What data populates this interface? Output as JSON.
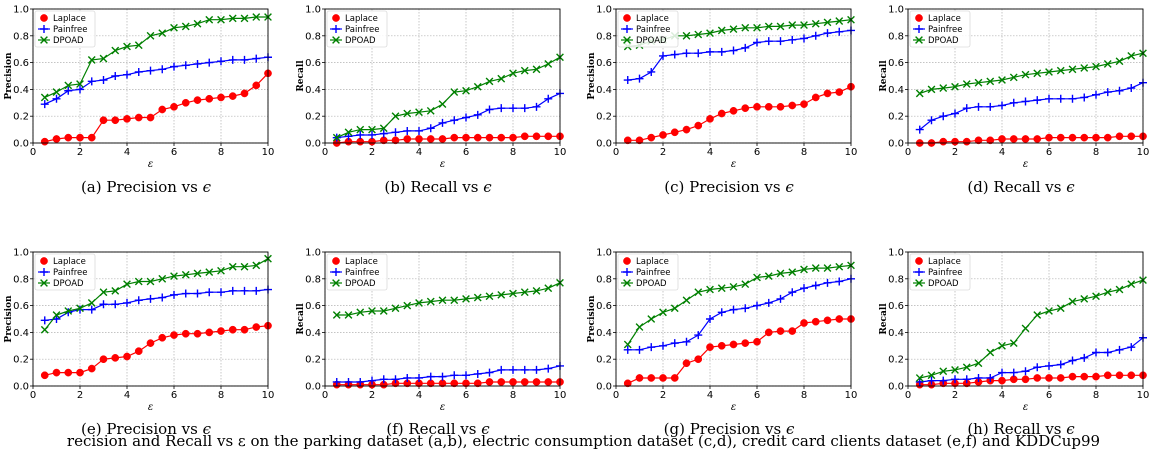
{
  "figure": {
    "caption": "recision and Recall vs ε on the parking dataset (a,b), electric consumption dataset (c,d), credit card clients dataset (e,f) and KDDCup99"
  },
  "legend_labels": [
    "Laplace",
    "Painfree",
    "DPOAD"
  ],
  "colors": {
    "Laplace": "#ff0000",
    "Painfree": "#0000ff",
    "DPOAD": "#008000"
  },
  "chart_data": [
    {
      "type": "line",
      "caption": "(a) Precision vs",
      "symbol": "ϵ",
      "xlabel": "ε",
      "ylabel": "Precision",
      "xlim": [
        0,
        10
      ],
      "ylim": [
        0,
        1
      ],
      "xticks": [
        0,
        2,
        4,
        6,
        8,
        10
      ],
      "yticks": [
        0.0,
        0.2,
        0.4,
        0.6,
        0.8,
        1.0
      ],
      "grid": true,
      "legend_loc": "upper-left",
      "x": [
        0.5,
        1,
        1.5,
        2,
        2.5,
        3,
        3.5,
        4,
        4.5,
        5,
        5.5,
        6,
        6.5,
        7,
        7.5,
        8,
        8.5,
        9,
        9.5,
        10
      ],
      "series": [
        {
          "name": "Laplace",
          "values": [
            0.01,
            0.03,
            0.04,
            0.04,
            0.04,
            0.17,
            0.17,
            0.18,
            0.19,
            0.19,
            0.25,
            0.27,
            0.3,
            0.32,
            0.33,
            0.34,
            0.35,
            0.37,
            0.43,
            0.52
          ]
        },
        {
          "name": "Painfree",
          "values": [
            0.29,
            0.33,
            0.39,
            0.4,
            0.46,
            0.47,
            0.5,
            0.51,
            0.53,
            0.54,
            0.55,
            0.57,
            0.58,
            0.59,
            0.6,
            0.61,
            0.62,
            0.62,
            0.63,
            0.64
          ]
        },
        {
          "name": "DPOAD",
          "values": [
            0.34,
            0.38,
            0.43,
            0.44,
            0.62,
            0.63,
            0.69,
            0.72,
            0.73,
            0.8,
            0.82,
            0.86,
            0.87,
            0.89,
            0.92,
            0.92,
            0.93,
            0.93,
            0.94,
            0.94
          ]
        }
      ]
    },
    {
      "type": "line",
      "caption": "(b) Recall vs",
      "symbol": "ϵ",
      "xlabel": "ε",
      "ylabel": "Recall",
      "xlim": [
        0,
        10
      ],
      "ylim": [
        0,
        1
      ],
      "xticks": [
        0,
        2,
        4,
        6,
        8,
        10
      ],
      "yticks": [
        0.0,
        0.2,
        0.4,
        0.6,
        0.8,
        1.0
      ],
      "grid": true,
      "legend_loc": "upper-left",
      "x": [
        0.5,
        1,
        1.5,
        2,
        2.5,
        3,
        3.5,
        4,
        4.5,
        5,
        5.5,
        6,
        6.5,
        7,
        7.5,
        8,
        8.5,
        9,
        9.5,
        10
      ],
      "series": [
        {
          "name": "Laplace",
          "values": [
            0.0,
            0.01,
            0.01,
            0.01,
            0.02,
            0.02,
            0.03,
            0.03,
            0.03,
            0.03,
            0.04,
            0.04,
            0.04,
            0.04,
            0.04,
            0.04,
            0.05,
            0.05,
            0.05,
            0.05
          ]
        },
        {
          "name": "Painfree",
          "values": [
            0.04,
            0.05,
            0.06,
            0.06,
            0.07,
            0.08,
            0.09,
            0.09,
            0.11,
            0.15,
            0.17,
            0.19,
            0.21,
            0.25,
            0.26,
            0.26,
            0.26,
            0.27,
            0.33,
            0.37
          ]
        },
        {
          "name": "DPOAD",
          "values": [
            0.04,
            0.08,
            0.1,
            0.1,
            0.11,
            0.2,
            0.22,
            0.23,
            0.24,
            0.29,
            0.38,
            0.39,
            0.42,
            0.46,
            0.48,
            0.52,
            0.54,
            0.55,
            0.59,
            0.64
          ]
        }
      ]
    },
    {
      "type": "line",
      "caption": "(c) Precision vs",
      "symbol": "ϵ",
      "xlabel": "ε",
      "ylabel": "Precision",
      "xlim": [
        0,
        10
      ],
      "ylim": [
        0,
        1
      ],
      "xticks": [
        0,
        2,
        4,
        6,
        8,
        10
      ],
      "yticks": [
        0.0,
        0.2,
        0.4,
        0.6,
        0.8,
        1.0
      ],
      "grid": true,
      "legend_loc": "upper-left",
      "x": [
        0.5,
        1,
        1.5,
        2,
        2.5,
        3,
        3.5,
        4,
        4.5,
        5,
        5.5,
        6,
        6.5,
        7,
        7.5,
        8,
        8.5,
        9,
        9.5,
        10
      ],
      "series": [
        {
          "name": "Laplace",
          "values": [
            0.02,
            0.02,
            0.04,
            0.06,
            0.08,
            0.1,
            0.13,
            0.18,
            0.22,
            0.24,
            0.26,
            0.27,
            0.27,
            0.27,
            0.28,
            0.29,
            0.34,
            0.37,
            0.38,
            0.42
          ]
        },
        {
          "name": "Painfree",
          "values": [
            0.47,
            0.48,
            0.53,
            0.65,
            0.66,
            0.67,
            0.67,
            0.68,
            0.68,
            0.69,
            0.71,
            0.75,
            0.76,
            0.76,
            0.77,
            0.78,
            0.8,
            0.82,
            0.83,
            0.84
          ]
        },
        {
          "name": "DPOAD",
          "values": [
            0.72,
            0.73,
            0.76,
            0.77,
            0.8,
            0.8,
            0.81,
            0.82,
            0.84,
            0.85,
            0.86,
            0.86,
            0.87,
            0.87,
            0.88,
            0.88,
            0.89,
            0.9,
            0.91,
            0.92
          ]
        }
      ]
    },
    {
      "type": "line",
      "caption": "(d) Recall vs",
      "symbol": "ϵ",
      "xlabel": "ε",
      "ylabel": "Recall",
      "xlim": [
        0,
        10
      ],
      "ylim": [
        0,
        1
      ],
      "xticks": [
        0,
        2,
        4,
        6,
        8,
        10
      ],
      "yticks": [
        0.0,
        0.2,
        0.4,
        0.6,
        0.8,
        1.0
      ],
      "grid": true,
      "legend_loc": "upper-left",
      "x": [
        0.5,
        1,
        1.5,
        2,
        2.5,
        3,
        3.5,
        4,
        4.5,
        5,
        5.5,
        6,
        6.5,
        7,
        7.5,
        8,
        8.5,
        9,
        9.5,
        10
      ],
      "series": [
        {
          "name": "Laplace",
          "values": [
            0.0,
            0.0,
            0.01,
            0.01,
            0.01,
            0.02,
            0.02,
            0.03,
            0.03,
            0.03,
            0.03,
            0.04,
            0.04,
            0.04,
            0.04,
            0.04,
            0.04,
            0.05,
            0.05,
            0.05
          ]
        },
        {
          "name": "Painfree",
          "values": [
            0.1,
            0.17,
            0.2,
            0.22,
            0.26,
            0.27,
            0.27,
            0.28,
            0.3,
            0.31,
            0.32,
            0.33,
            0.33,
            0.33,
            0.34,
            0.36,
            0.38,
            0.39,
            0.41,
            0.45
          ]
        },
        {
          "name": "DPOAD",
          "values": [
            0.37,
            0.4,
            0.41,
            0.42,
            0.44,
            0.45,
            0.46,
            0.47,
            0.49,
            0.51,
            0.52,
            0.53,
            0.54,
            0.55,
            0.56,
            0.57,
            0.59,
            0.61,
            0.65,
            0.67
          ]
        }
      ]
    },
    {
      "type": "line",
      "caption": "(e) Precision vs",
      "symbol": "ϵ",
      "xlabel": "ε",
      "ylabel": "Precision",
      "xlim": [
        0,
        10
      ],
      "ylim": [
        0,
        1
      ],
      "xticks": [
        0,
        2,
        4,
        6,
        8,
        10
      ],
      "yticks": [
        0.0,
        0.2,
        0.4,
        0.6,
        0.8,
        1.0
      ],
      "grid": true,
      "legend_loc": "upper-left",
      "x": [
        0.5,
        1,
        1.5,
        2,
        2.5,
        3,
        3.5,
        4,
        4.5,
        5,
        5.5,
        6,
        6.5,
        7,
        7.5,
        8,
        8.5,
        9,
        9.5,
        10
      ],
      "series": [
        {
          "name": "Laplace",
          "values": [
            0.08,
            0.1,
            0.1,
            0.1,
            0.13,
            0.2,
            0.21,
            0.22,
            0.26,
            0.32,
            0.36,
            0.38,
            0.39,
            0.39,
            0.4,
            0.41,
            0.42,
            0.42,
            0.44,
            0.45
          ]
        },
        {
          "name": "Painfree",
          "values": [
            0.49,
            0.5,
            0.55,
            0.57,
            0.57,
            0.61,
            0.61,
            0.62,
            0.64,
            0.65,
            0.66,
            0.68,
            0.69,
            0.69,
            0.7,
            0.7,
            0.71,
            0.71,
            0.71,
            0.72
          ]
        },
        {
          "name": "DPOAD",
          "values": [
            0.42,
            0.53,
            0.56,
            0.58,
            0.62,
            0.7,
            0.71,
            0.76,
            0.78,
            0.78,
            0.8,
            0.82,
            0.83,
            0.84,
            0.85,
            0.86,
            0.89,
            0.89,
            0.9,
            0.95
          ]
        }
      ]
    },
    {
      "type": "line",
      "caption": "(f) Recall vs",
      "symbol": "ϵ",
      "xlabel": "ε",
      "ylabel": "Recall",
      "xlim": [
        0,
        10
      ],
      "ylim": [
        0,
        1
      ],
      "xticks": [
        0,
        2,
        4,
        6,
        8,
        10
      ],
      "yticks": [
        0.0,
        0.2,
        0.4,
        0.6,
        0.8,
        1.0
      ],
      "grid": true,
      "legend_loc": "upper-left",
      "x": [
        0.5,
        1,
        1.5,
        2,
        2.5,
        3,
        3.5,
        4,
        4.5,
        5,
        5.5,
        6,
        6.5,
        7,
        7.5,
        8,
        8.5,
        9,
        9.5,
        10
      ],
      "series": [
        {
          "name": "Laplace",
          "values": [
            0.01,
            0.01,
            0.01,
            0.01,
            0.01,
            0.02,
            0.02,
            0.02,
            0.02,
            0.02,
            0.02,
            0.02,
            0.02,
            0.03,
            0.03,
            0.03,
            0.03,
            0.03,
            0.03,
            0.03
          ]
        },
        {
          "name": "Painfree",
          "values": [
            0.03,
            0.03,
            0.03,
            0.04,
            0.05,
            0.05,
            0.06,
            0.06,
            0.07,
            0.07,
            0.08,
            0.08,
            0.09,
            0.1,
            0.12,
            0.12,
            0.12,
            0.12,
            0.13,
            0.15
          ]
        },
        {
          "name": "DPOAD",
          "values": [
            0.53,
            0.53,
            0.55,
            0.56,
            0.56,
            0.58,
            0.6,
            0.62,
            0.63,
            0.64,
            0.64,
            0.65,
            0.66,
            0.67,
            0.68,
            0.69,
            0.7,
            0.71,
            0.73,
            0.77
          ]
        }
      ]
    },
    {
      "type": "line",
      "caption": "(g) Precision vs",
      "symbol": "ϵ",
      "xlabel": "ε",
      "ylabel": "Precision",
      "xlim": [
        0,
        10
      ],
      "ylim": [
        0,
        1
      ],
      "xticks": [
        0,
        2,
        4,
        6,
        8,
        10
      ],
      "yticks": [
        0.0,
        0.2,
        0.4,
        0.6,
        0.8,
        1.0
      ],
      "grid": true,
      "legend_loc": "upper-left",
      "x": [
        0.5,
        1,
        1.5,
        2,
        2.5,
        3,
        3.5,
        4,
        4.5,
        5,
        5.5,
        6,
        6.5,
        7,
        7.5,
        8,
        8.5,
        9,
        9.5,
        10
      ],
      "series": [
        {
          "name": "Laplace",
          "values": [
            0.02,
            0.06,
            0.06,
            0.06,
            0.06,
            0.17,
            0.2,
            0.29,
            0.3,
            0.31,
            0.32,
            0.33,
            0.4,
            0.41,
            0.41,
            0.47,
            0.48,
            0.49,
            0.5,
            0.5
          ]
        },
        {
          "name": "Painfree",
          "values": [
            0.27,
            0.27,
            0.29,
            0.3,
            0.32,
            0.33,
            0.38,
            0.5,
            0.55,
            0.57,
            0.58,
            0.6,
            0.62,
            0.65,
            0.7,
            0.73,
            0.75,
            0.77,
            0.78,
            0.8
          ]
        },
        {
          "name": "DPOAD",
          "values": [
            0.31,
            0.44,
            0.5,
            0.55,
            0.58,
            0.64,
            0.7,
            0.72,
            0.73,
            0.74,
            0.76,
            0.81,
            0.82,
            0.84,
            0.85,
            0.87,
            0.88,
            0.88,
            0.89,
            0.9
          ]
        }
      ]
    },
    {
      "type": "line",
      "caption": "(h) Recall vs",
      "symbol": "ϵ",
      "xlabel": "ε",
      "ylabel": "Recall",
      "xlim": [
        0,
        10
      ],
      "ylim": [
        0,
        1
      ],
      "xticks": [
        0,
        2,
        4,
        6,
        8,
        10
      ],
      "yticks": [
        0.0,
        0.2,
        0.4,
        0.6,
        0.8,
        1.0
      ],
      "grid": true,
      "legend_loc": "upper-left",
      "x": [
        0.5,
        1,
        1.5,
        2,
        2.5,
        3,
        3.5,
        4,
        4.5,
        5,
        5.5,
        6,
        6.5,
        7,
        7.5,
        8,
        8.5,
        9,
        9.5,
        10
      ],
      "series": [
        {
          "name": "Laplace",
          "values": [
            0.01,
            0.01,
            0.02,
            0.02,
            0.02,
            0.03,
            0.04,
            0.04,
            0.05,
            0.05,
            0.06,
            0.06,
            0.06,
            0.07,
            0.07,
            0.07,
            0.08,
            0.08,
            0.08,
            0.08
          ]
        },
        {
          "name": "Painfree",
          "values": [
            0.03,
            0.04,
            0.04,
            0.05,
            0.05,
            0.06,
            0.06,
            0.1,
            0.1,
            0.11,
            0.14,
            0.15,
            0.16,
            0.19,
            0.21,
            0.25,
            0.25,
            0.27,
            0.29,
            0.36
          ]
        },
        {
          "name": "DPOAD",
          "values": [
            0.06,
            0.08,
            0.11,
            0.12,
            0.14,
            0.17,
            0.25,
            0.3,
            0.32,
            0.43,
            0.53,
            0.56,
            0.58,
            0.63,
            0.65,
            0.67,
            0.7,
            0.72,
            0.76,
            0.79
          ]
        }
      ]
    }
  ]
}
